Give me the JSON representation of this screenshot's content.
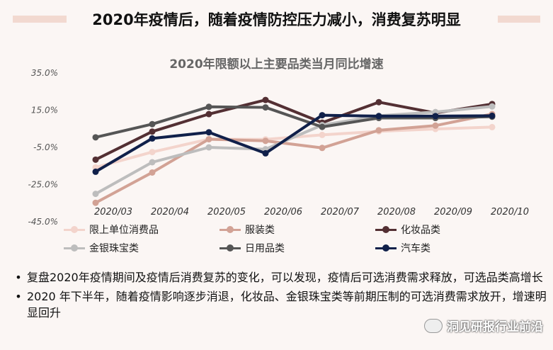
{
  "headline": "2020年疫情后，随着疫情防控压力减小，消费复苏明显",
  "chart_data": {
    "type": "line",
    "title": "2020年限额以上主要品类当月同比增速",
    "categories": [
      "2020/03",
      "2020/04",
      "2020/05",
      "2020/06",
      "2020/07",
      "2020/08",
      "2020/09",
      "2020/10"
    ],
    "yticks": [
      "35.0%",
      "15.0%",
      "-5.0%",
      "-25.0%",
      "-45.0%"
    ],
    "ylim": [
      -45,
      35
    ],
    "legend_position": "bottom",
    "series": [
      {
        "name": "限上单位消费品",
        "color": "#f3d4cc",
        "values": [
          -15.8,
          -7.5,
          -0.6,
          -0.7,
          1.7,
          3.6,
          4.9,
          5.9
        ]
      },
      {
        "name": "服装类",
        "color": "#d2a295",
        "values": [
          -34.8,
          -18.5,
          -0.6,
          -1.5,
          -5.3,
          4.2,
          6.7,
          12.9
        ]
      },
      {
        "name": "化妆品类",
        "color": "#532f33",
        "values": [
          -11.6,
          3.5,
          12.9,
          20.5,
          8.3,
          19.3,
          13.5,
          18.3
        ]
      },
      {
        "name": "金银珠宝类",
        "color": "#bdbdbd",
        "values": [
          -30.0,
          -13.0,
          -5.0,
          -6.0,
          7.0,
          12.0,
          14.0,
          17.0
        ]
      },
      {
        "name": "日用品类",
        "color": "#555555",
        "values": [
          0.4,
          7.5,
          16.8,
          16.5,
          6.0,
          10.8,
          10.8,
          11.5
        ]
      },
      {
        "name": "汽车类",
        "color": "#10204a",
        "values": [
          -18.1,
          -0.2,
          3.1,
          -8.2,
          12.3,
          11.8,
          11.8,
          12.0
        ]
      }
    ]
  },
  "bullets": [
    "复盘2020年疫情期间及疫情后消费复苏的变化，可以发现，疫情后可选消费需求释放，可选品类高增长",
    "2020 年下半年，随着疫情影响逐步消退，化妆品、金银珠宝类等前期压制的可选消费需求放开，增速明显回升"
  ],
  "watermark": "洞见研报行业前沿"
}
